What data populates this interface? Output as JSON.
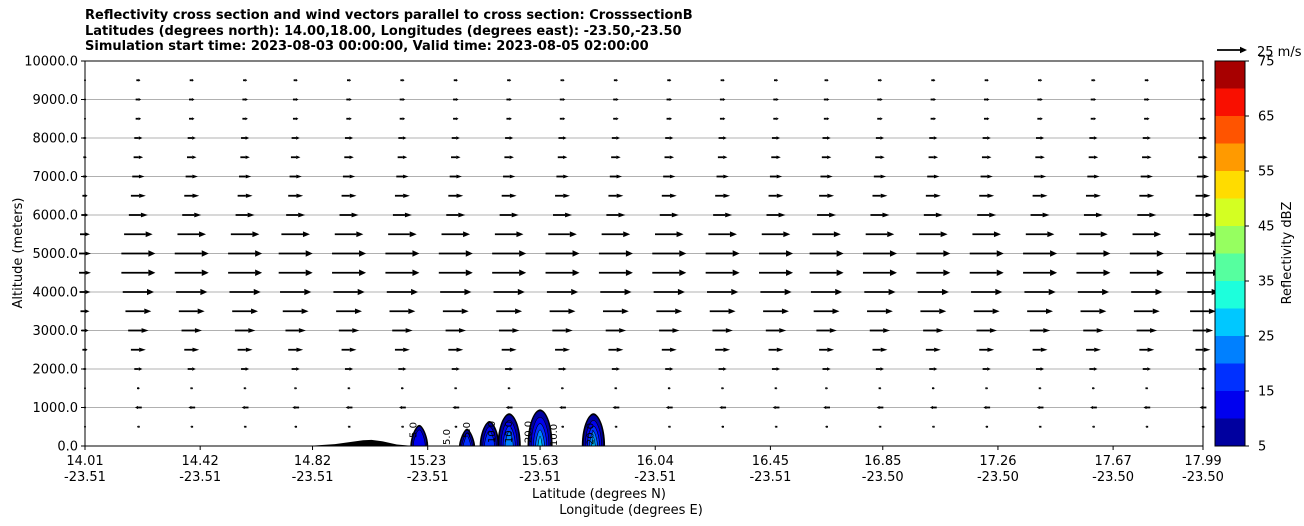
{
  "title_lines": [
    "Reflectivity cross section and wind vectors parallel to cross section: CrosssectionB",
    "Latitudes (degrees north): 14.00,18.00, Longitudes (degrees east): -23.50,-23.50",
    "Simulation start time: 2023-08-03 00:00:00, Valid time: 2023-08-05 02:00:00"
  ],
  "chart_data": {
    "type": "cross-section",
    "ylabel": "Altitude (meters)",
    "xlabel": "Latitude (degrees N)",
    "xlabel2": "Longitude (degrees E)",
    "ylim": [
      0,
      10000
    ],
    "xlim": [
      14.01,
      17.99
    ],
    "grid": "horizontal lines at y ticks",
    "y_ticks": [
      0,
      1000,
      2000,
      3000,
      4000,
      5000,
      6000,
      7000,
      8000,
      9000,
      10000
    ],
    "y_tick_labels": [
      "0.0",
      "1000.0",
      "2000.0",
      "3000.0",
      "4000.0",
      "5000.0",
      "6000.0",
      "7000.0",
      "8000.0",
      "9000.0",
      "10000.0"
    ],
    "x_ticks": [
      {
        "lat": 14.01,
        "lat_label": "14.01",
        "lon_label": "-23.51"
      },
      {
        "lat": 14.42,
        "lat_label": "14.42",
        "lon_label": "-23.51"
      },
      {
        "lat": 14.82,
        "lat_label": "14.82",
        "lon_label": "-23.51"
      },
      {
        "lat": 15.23,
        "lat_label": "15.23",
        "lon_label": "-23.51"
      },
      {
        "lat": 15.63,
        "lat_label": "15.63",
        "lon_label": "-23.51"
      },
      {
        "lat": 16.04,
        "lat_label": "16.04",
        "lon_label": "-23.51"
      },
      {
        "lat": 16.45,
        "lat_label": "16.45",
        "lon_label": "-23.51"
      },
      {
        "lat": 16.85,
        "lat_label": "16.85",
        "lon_label": "-23.50"
      },
      {
        "lat": 17.26,
        "lat_label": "17.26",
        "lon_label": "-23.50"
      },
      {
        "lat": 17.67,
        "lat_label": "17.67",
        "lon_label": "-23.50"
      },
      {
        "lat": 17.99,
        "lat_label": "17.99",
        "lon_label": "-23.50"
      }
    ],
    "wind_vectors": {
      "columns_lat": [
        14.01,
        14.2,
        14.39,
        14.58,
        14.76,
        14.95,
        15.14,
        15.33,
        15.52,
        15.71,
        15.9,
        16.09,
        16.28,
        16.47,
        16.65,
        16.84,
        17.03,
        17.22,
        17.41,
        17.6,
        17.79,
        17.99
      ],
      "levels_m": [
        500,
        1000,
        1500,
        2000,
        2500,
        3000,
        3500,
        4000,
        4500,
        5000,
        5500,
        6000,
        6500,
        7000,
        7500,
        8000,
        8500,
        9000,
        9500
      ],
      "speed_ms_by_level": [
        -2,
        -5,
        2,
        6,
        11,
        15,
        19,
        23,
        25,
        25,
        21,
        14,
        11,
        9,
        7,
        6,
        4,
        4,
        3
      ],
      "reference": {
        "value_ms": 25,
        "label": "25 m/s"
      }
    },
    "terrain": [
      {
        "lat": 14.8,
        "alt_m": 0
      },
      {
        "lat": 14.9,
        "alt_m": 50
      },
      {
        "lat": 15.0,
        "alt_m": 150
      },
      {
        "lat": 15.03,
        "alt_m": 160
      },
      {
        "lat": 15.07,
        "alt_m": 120
      },
      {
        "lat": 15.12,
        "alt_m": 40
      },
      {
        "lat": 15.18,
        "alt_m": 0
      }
    ],
    "reflectivity_cells": [
      {
        "lat": 15.2,
        "top_m": 550,
        "max_dbz": 10
      },
      {
        "lat": 15.37,
        "top_m": 450,
        "max_dbz": 15
      },
      {
        "lat": 15.45,
        "top_m": 650,
        "max_dbz": 15
      },
      {
        "lat": 15.52,
        "top_m": 850,
        "max_dbz": 20
      },
      {
        "lat": 15.63,
        "top_m": 950,
        "max_dbz": 25
      },
      {
        "lat": 15.82,
        "top_m": 850,
        "max_dbz": 25
      }
    ],
    "contour_labels": [
      "5.0",
      "5.0",
      "5.0",
      "10.0",
      "10.0",
      "20.0",
      "10.0",
      "20.0"
    ],
    "colorbar": {
      "label": "Reflectivity dBZ",
      "min": 5,
      "max": 75,
      "tick_labels": [
        "5",
        "15",
        "25",
        "35",
        "45",
        "55",
        "65",
        "75"
      ],
      "levels": [
        5,
        10,
        15,
        20,
        25,
        30,
        35,
        40,
        45,
        50,
        55,
        60,
        65,
        70,
        75
      ],
      "colors": [
        "#00009f",
        "#0000ef",
        "#0030ff",
        "#0080ff",
        "#00c8ff",
        "#1dffdc",
        "#56ff9f",
        "#96ff60",
        "#d4ff22",
        "#ffdc00",
        "#ff9a00",
        "#ff5400",
        "#f90f00",
        "#a70000"
      ]
    }
  }
}
